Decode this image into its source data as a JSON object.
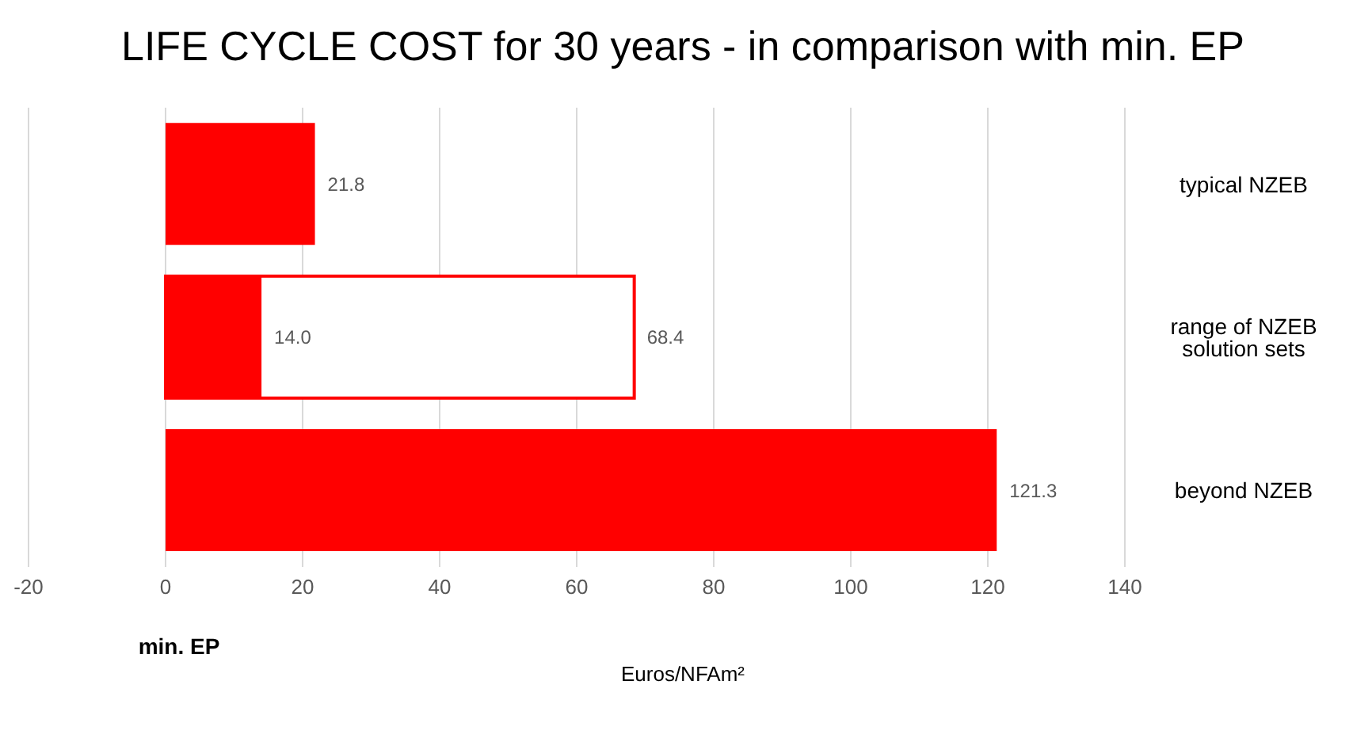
{
  "chart_data": {
    "type": "bar",
    "orientation": "horizontal",
    "title": "LIFE CYCLE COST for 30 years - in comparison with min. EP",
    "xlabel": "Euros/NFAm²",
    "categories": [
      "typical NZEB",
      "range of NZEB solution sets",
      "beyond NZEB"
    ],
    "series": [
      {
        "color": "#ff0000",
        "values": [
          null,
          68.4,
          null
        ],
        "value_labels": [
          null,
          "68.4",
          null
        ]
      },
      {
        "color": "#ff0000",
        "values": [
          21.8,
          14.0,
          121.3
        ],
        "value_labels": [
          "21.8",
          "14.0",
          "121.3"
        ]
      }
    ],
    "xlim": [
      -20,
      140
    ],
    "xticks": [
      -20,
      0,
      20,
      40,
      60,
      80,
      100,
      120,
      140
    ],
    "grid": "x",
    "annotations": [
      "min. EP"
    ]
  }
}
